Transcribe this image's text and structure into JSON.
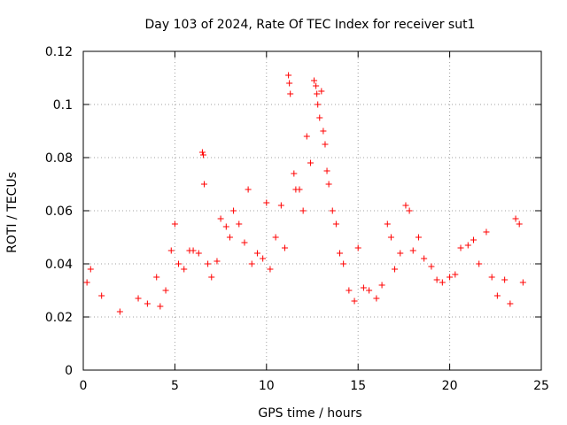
{
  "chart_data": {
    "type": "scatter",
    "title": "Day 103 of 2024, Rate Of TEC Index for receiver sut1",
    "xlabel": "GPS time / hours",
    "ylabel": "ROTI / TECUs",
    "xlim": [
      0,
      25
    ],
    "ylim": [
      0,
      0.12
    ],
    "xticks": [
      0,
      5,
      10,
      15,
      20,
      25
    ],
    "xtick_labels": [
      "0",
      "5",
      "10",
      "15",
      "20",
      "25"
    ],
    "yticks": [
      0,
      0.02,
      0.04,
      0.06,
      0.08,
      0.1,
      0.12
    ],
    "ytick_labels": [
      "0",
      "0.02",
      "0.04",
      "0.06",
      "0.08",
      "0.1",
      "0.12"
    ],
    "grid": true,
    "marker": "+",
    "color": "#ff0000",
    "series": [
      {
        "name": "sut1 ROTI",
        "x": [
          0.2,
          0.4,
          1.0,
          2.0,
          3.0,
          3.5,
          4.0,
          4.2,
          4.5,
          4.8,
          5.0,
          5.2,
          5.5,
          5.8,
          6.0,
          6.3,
          6.5,
          6.55,
          6.6,
          6.8,
          7.0,
          7.3,
          7.5,
          7.8,
          8.0,
          8.2,
          8.5,
          8.8,
          9.0,
          9.2,
          9.5,
          9.8,
          10.0,
          10.2,
          10.5,
          10.8,
          11.0,
          11.2,
          11.25,
          11.3,
          11.5,
          11.6,
          11.8,
          12.0,
          12.2,
          12.4,
          12.6,
          12.7,
          12.75,
          12.8,
          12.9,
          13.0,
          13.1,
          13.2,
          13.3,
          13.4,
          13.6,
          13.8,
          14.0,
          14.2,
          14.5,
          14.8,
          15.0,
          15.3,
          15.6,
          16.0,
          16.3,
          16.6,
          16.8,
          17.0,
          17.3,
          17.6,
          17.8,
          18.0,
          18.3,
          18.6,
          19.0,
          19.3,
          19.6,
          20.0,
          20.3,
          20.6,
          21.0,
          21.3,
          21.6,
          22.0,
          22.3,
          22.6,
          23.0,
          23.3,
          23.6,
          23.8,
          24.0
        ],
        "y": [
          0.033,
          0.038,
          0.028,
          0.022,
          0.027,
          0.025,
          0.035,
          0.024,
          0.03,
          0.045,
          0.055,
          0.04,
          0.038,
          0.045,
          0.045,
          0.044,
          0.082,
          0.081,
          0.07,
          0.04,
          0.035,
          0.041,
          0.057,
          0.054,
          0.05,
          0.06,
          0.055,
          0.048,
          0.068,
          0.04,
          0.044,
          0.042,
          0.063,
          0.038,
          0.05,
          0.062,
          0.046,
          0.111,
          0.108,
          0.104,
          0.074,
          0.068,
          0.068,
          0.06,
          0.088,
          0.078,
          0.109,
          0.107,
          0.104,
          0.1,
          0.095,
          0.105,
          0.09,
          0.085,
          0.075,
          0.07,
          0.06,
          0.055,
          0.044,
          0.04,
          0.03,
          0.026,
          0.046,
          0.031,
          0.03,
          0.027,
          0.032,
          0.055,
          0.05,
          0.038,
          0.044,
          0.062,
          0.06,
          0.045,
          0.05,
          0.042,
          0.039,
          0.034,
          0.033,
          0.035,
          0.036,
          0.046,
          0.047,
          0.049,
          0.04,
          0.052,
          0.035,
          0.028,
          0.034,
          0.025,
          0.057,
          0.055,
          0.033
        ]
      }
    ]
  }
}
